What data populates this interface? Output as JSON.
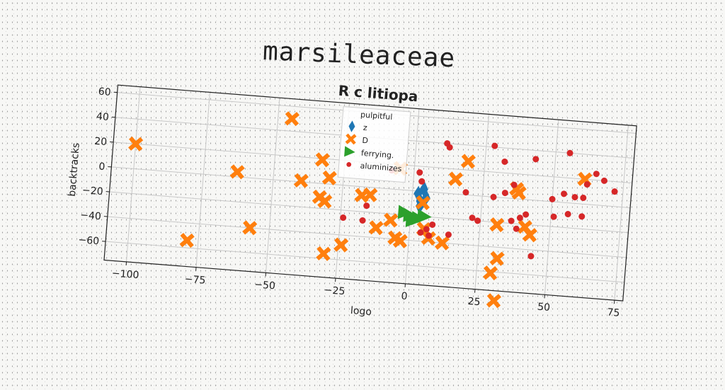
{
  "figure": {
    "title": "marsileaceae"
  },
  "chart_data": {
    "type": "scatter",
    "title": "R c litiopa",
    "xlabel": "logo",
    "ylabel": "backtracks",
    "xlim": [
      -108,
      78
    ],
    "ylim": [
      -75,
      66
    ],
    "xticks": [
      -100,
      -75,
      -50,
      -25,
      0,
      25,
      50,
      75
    ],
    "yticks": [
      -60,
      -40,
      -20,
      0,
      20,
      40,
      60
    ],
    "grid": true,
    "legend": {
      "title": "pulpitful",
      "placement": "top-center"
    },
    "series": [
      {
        "name": "z",
        "marker": "diamond",
        "color": "#1f77b4",
        "points": [
          [
            2,
            -2
          ],
          [
            3,
            -8
          ],
          [
            4,
            2
          ],
          [
            5,
            -5
          ],
          [
            3,
            -12
          ]
        ]
      },
      {
        "name": "D",
        "marker": "x",
        "color": "#ff7f0e",
        "points": [
          [
            -100,
            20
          ],
          [
            -79,
            -54
          ],
          [
            -63,
            4
          ],
          [
            -57,
            -40
          ],
          [
            -45,
            50
          ],
          [
            -40,
            1
          ],
          [
            -33,
            19
          ],
          [
            -33,
            -11
          ],
          [
            -30,
            5
          ],
          [
            -31,
            -14
          ],
          [
            -30,
            -56
          ],
          [
            -24,
            -48
          ],
          [
            -18,
            -7
          ],
          [
            -15,
            -6
          ],
          [
            -12,
            -32
          ],
          [
            -7,
            -25
          ],
          [
            -5,
            -39
          ],
          [
            -3,
            -41
          ],
          [
            -5,
            17
          ],
          [
            4,
            -9
          ],
          [
            5,
            -30
          ],
          [
            7,
            -37
          ],
          [
            12,
            -40
          ],
          [
            15,
            12
          ],
          [
            19,
            27
          ],
          [
            31,
            -22
          ],
          [
            30,
            -61
          ],
          [
            32,
            -49
          ],
          [
            32,
            -83
          ],
          [
            37,
            8
          ],
          [
            38,
            5
          ],
          [
            41,
            -22
          ],
          [
            43,
            -28
          ],
          [
            61,
            20
          ]
        ]
      },
      {
        "name": "ferrying.",
        "marker": "triangle-right",
        "color": "#2ca02c",
        "points": [
          [
            -2,
            -18
          ],
          [
            1,
            -24
          ],
          [
            0,
            -20
          ],
          [
            3,
            -22
          ],
          [
            5,
            -20
          ]
        ]
      },
      {
        "name": "aluminizes",
        "marker": "circle",
        "color": "#d62728",
        "points": [
          [
            -24,
            -26
          ],
          [
            -17,
            -27
          ],
          [
            -16,
            -15
          ],
          [
            -8,
            15
          ],
          [
            2,
            15
          ],
          [
            3,
            8
          ],
          [
            4,
            -33
          ],
          [
            6,
            -30
          ],
          [
            7,
            -35
          ],
          [
            8,
            -26
          ],
          [
            11,
            40
          ],
          [
            12,
            37
          ],
          [
            14,
            -33
          ],
          [
            19,
            2
          ],
          [
            22,
            -18
          ],
          [
            24,
            -20
          ],
          [
            28,
            41
          ],
          [
            29,
            0
          ],
          [
            32,
            29
          ],
          [
            33,
            4
          ],
          [
            36,
            11
          ],
          [
            36,
            -18
          ],
          [
            38,
            -24
          ],
          [
            39,
            -15
          ],
          [
            41,
            -12
          ],
          [
            43,
            33
          ],
          [
            44,
            -45
          ],
          [
            50,
            2
          ],
          [
            51,
            -12
          ],
          [
            54,
            7
          ],
          [
            55,
            40
          ],
          [
            56,
            -9
          ],
          [
            58,
            5
          ],
          [
            61,
            -10
          ],
          [
            61,
            5
          ],
          [
            62,
            16
          ],
          [
            65,
            25
          ],
          [
            68,
            20
          ],
          [
            72,
            12
          ]
        ]
      }
    ]
  }
}
